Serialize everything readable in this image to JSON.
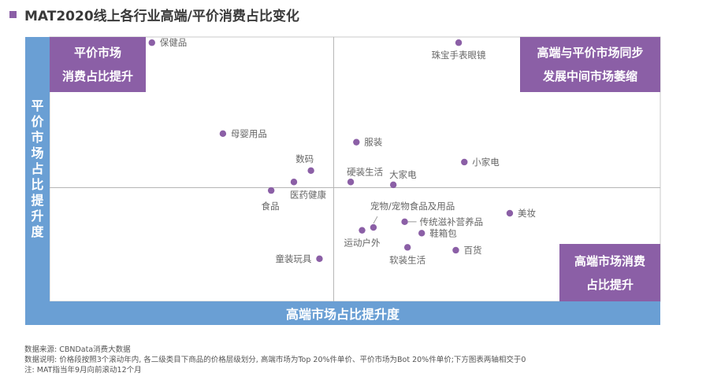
{
  "title": "MAT2020线上各行业高端/平价消费占比变化",
  "chart_data": {
    "type": "scatter",
    "title": "MAT2020线上各行业高端/平价消费占比变化",
    "xlabel": "高端市场占比提升度",
    "ylabel": "平价市场占比提升度",
    "xlim": [
      -100,
      115
    ],
    "ylim": [
      -40,
      53
    ],
    "axes_cross_at": [
      0,
      0
    ],
    "grid": false,
    "tick_labels": false,
    "point_color": "#8b5fa6",
    "points": [
      {
        "label": "保健品",
        "x": -64,
        "y": 51,
        "label_pos": "right"
      },
      {
        "label": "珠宝手表眼镜",
        "x": 44,
        "y": 51,
        "label_pos": "below"
      },
      {
        "label": "母婴用品",
        "x": -39,
        "y": 19,
        "label_pos": "right"
      },
      {
        "label": "服装",
        "x": 8,
        "y": 16,
        "label_pos": "right"
      },
      {
        "label": "小家电",
        "x": 46,
        "y": 9,
        "label_pos": "right"
      },
      {
        "label": "数码",
        "x": -8,
        "y": 6,
        "label_pos": "above-left"
      },
      {
        "label": "医药健康",
        "x": -14,
        "y": 2,
        "label_pos": "below-right"
      },
      {
        "label": "食品",
        "x": -22,
        "y": -1,
        "label_pos": "below-left"
      },
      {
        "label": "硬装生活",
        "x": 6,
        "y": 2,
        "label_pos": "above-right"
      },
      {
        "label": "大家电",
        "x": 21,
        "y": 1,
        "label_pos": "above-right"
      },
      {
        "label": "美妆",
        "x": 62,
        "y": -9,
        "label_pos": "right"
      },
      {
        "label": "宠物/宠物食品及用品",
        "x": 14,
        "y": -14,
        "label_pos": "above-callout"
      },
      {
        "label": "传统滋补营养品",
        "x": 25,
        "y": -12,
        "label_pos": "right-callout"
      },
      {
        "label": "运动户外",
        "x": 10,
        "y": -15,
        "label_pos": "below"
      },
      {
        "label": "鞋箱包",
        "x": 31,
        "y": -16,
        "label_pos": "right"
      },
      {
        "label": "软装生活",
        "x": 26,
        "y": -21,
        "label_pos": "below"
      },
      {
        "label": "百货",
        "x": 43,
        "y": -22,
        "label_pos": "right"
      },
      {
        "label": "童装玩具",
        "x": -5,
        "y": -25,
        "label_pos": "left"
      }
    ],
    "quadrant_labels": {
      "top_left": [
        "平价市场",
        "消费占比提升"
      ],
      "top_right": [
        "高端与平价市场同步",
        "发展中间市场萎缩"
      ],
      "bottom_right": [
        "高端市场消费",
        "占比提升"
      ]
    }
  },
  "notes": [
    "数据来源: CBNData消费大数据",
    "数据说明: 价格段按照3个滚动年内, 各二级类目下商品的价格层级划分, 高端市场为Top 20%件单价、平价市场为Bot 20%件单价;下方图表两轴相交于0",
    "注: MAT指当年9月向前滚动12个月"
  ]
}
